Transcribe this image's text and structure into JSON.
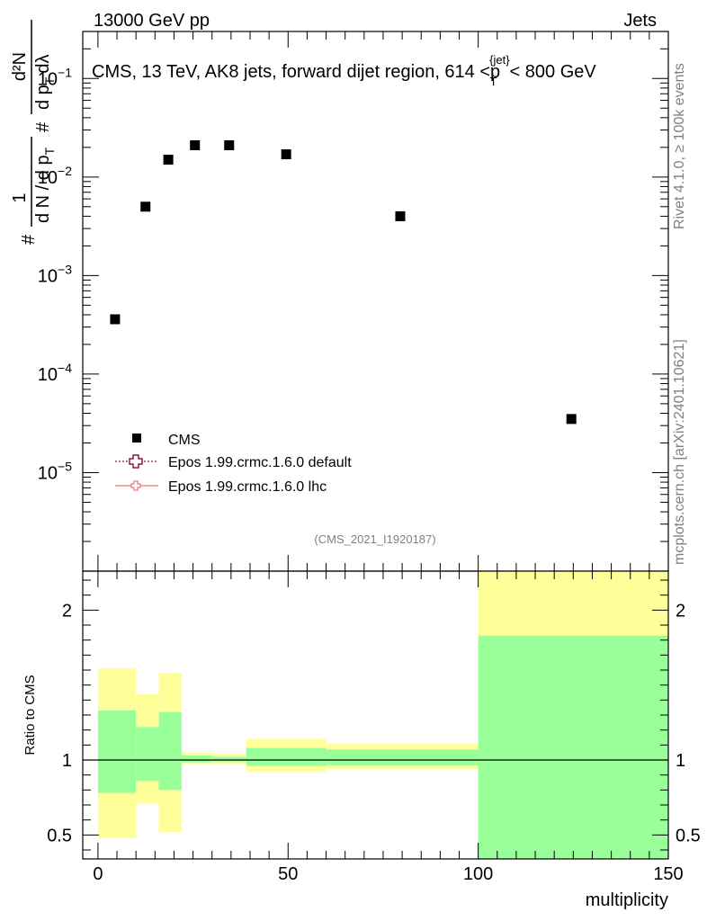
{
  "header": {
    "left": "13000 GeV pp",
    "right": "Jets"
  },
  "side": {
    "rivet": "Rivet 4.1.0, ≥ 100k events",
    "mcplots": "mcplots.cern.ch [arXiv:2401.10621]"
  },
  "chart_data": [
    {
      "type": "scatter",
      "title": "CMS, 13 TeV, AK8 jets, forward dijet region, 614 <p_T^{jet}< 800 GeV",
      "title_parts": {
        "main": "CMS, 13 TeV, AK8 jets, forward dijet region, 614 <p",
        "sup": "{jet}",
        "sub": "T",
        "tail": "< 800 GeV"
      },
      "ylabel": "1/(dN/dp_T) d²N/(dp_T dλ)",
      "ylabel_parts": {
        "one": "1",
        "den": "d N / d p",
        "den_sub": "T",
        "hash": "#",
        "num2": "d²N",
        "den2": "d p",
        "den2_sub": "T",
        "den2_tail": "dλ"
      },
      "yscale": "log",
      "ylim": [
        1e-06,
        0.3
      ],
      "xlim": [
        -4,
        150
      ],
      "yticks": [
        {
          "value": 1e-05,
          "base": "10",
          "exp": "−5"
        },
        {
          "value": 0.0001,
          "base": "10",
          "exp": "−4"
        },
        {
          "value": 0.001,
          "base": "10",
          "exp": "−3"
        },
        {
          "value": 0.01,
          "base": "10",
          "exp": "−2"
        },
        {
          "value": 0.1,
          "base": "10",
          "exp": "−1"
        }
      ],
      "x": [
        4.5,
        12.5,
        18.5,
        25.5,
        34.5,
        49.5,
        79.5,
        124.5
      ],
      "series": [
        {
          "name": "CMS",
          "marker": "square",
          "values": [
            0.00036,
            0.005,
            0.015,
            0.021,
            0.021,
            0.017,
            0.004,
            3.5e-05
          ]
        }
      ],
      "legend": [
        {
          "label": "CMS",
          "style": "square"
        },
        {
          "label": "Epos 1.99.crmc.1.6.0 default",
          "style": "dotted-cross",
          "color": "#8b1a3d"
        },
        {
          "label": "Epos 1.99.crmc.1.6.0 lhc",
          "style": "solid-cross",
          "color": "#e87878"
        }
      ],
      "legend_position": "bottom-left",
      "watermark": "(CMS_2021_I1920187)"
    },
    {
      "type": "area",
      "ylabel": "Ratio to CMS",
      "xlabel": "multiplicity",
      "ylim": [
        0.34,
        2.26
      ],
      "xlim": [
        -4,
        150
      ],
      "xticks": [
        {
          "value": 0,
          "label": "0"
        },
        {
          "value": 50,
          "label": "50"
        },
        {
          "value": 100,
          "label": "100"
        },
        {
          "value": 150,
          "label": "150"
        }
      ],
      "yticks": [
        {
          "value": 0.5,
          "label": "0.5"
        },
        {
          "value": 1,
          "label": "1"
        },
        {
          "value": 2,
          "label": "2"
        }
      ],
      "reference_line": 1,
      "bands": [
        {
          "x0": 0,
          "x1": 10,
          "green": [
            0.78,
            1.33
          ],
          "yellow": [
            0.48,
            1.61
          ]
        },
        {
          "x0": 10,
          "x1": 16,
          "green": [
            0.86,
            1.22
          ],
          "yellow": [
            0.71,
            1.44
          ]
        },
        {
          "x0": 16,
          "x1": 22,
          "green": [
            0.8,
            1.32
          ],
          "yellow": [
            0.52,
            1.58
          ]
        },
        {
          "x0": 22,
          "x1": 30,
          "green": [
            0.985,
            1.03
          ],
          "yellow": [
            0.97,
            1.05
          ]
        },
        {
          "x0": 30,
          "x1": 39,
          "green": [
            0.99,
            1.02
          ],
          "yellow": [
            0.975,
            1.04
          ]
        },
        {
          "x0": 39,
          "x1": 60,
          "green": [
            0.96,
            1.08
          ],
          "yellow": [
            0.92,
            1.14
          ]
        },
        {
          "x0": 60,
          "x1": 100,
          "green": [
            0.965,
            1.07
          ],
          "yellow": [
            0.94,
            1.11
          ]
        },
        {
          "x0": 100,
          "x1": 150,
          "green": [
            0.34,
            1.83
          ],
          "yellow": [
            0.34,
            2.26
          ]
        }
      ],
      "colors": {
        "green": "#99ff99",
        "yellow": "#ffff99"
      }
    }
  ]
}
